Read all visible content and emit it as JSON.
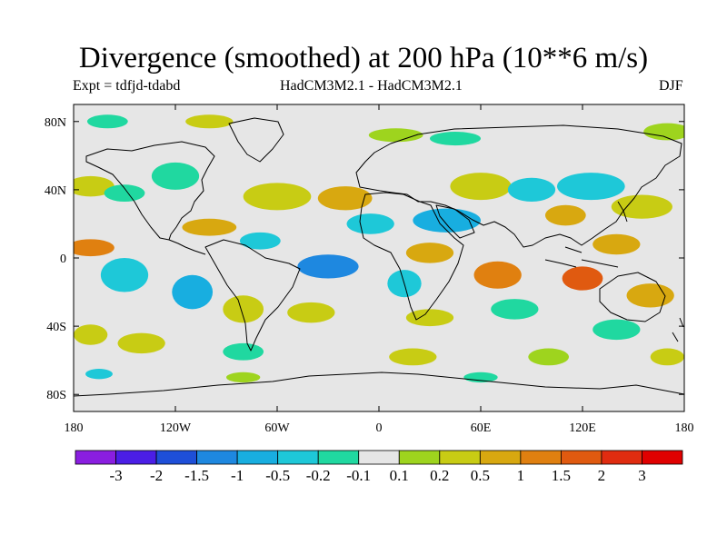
{
  "chart_data": {
    "type": "heatmap",
    "title": "Divergence (smoothed) at 200 hPa (10**6 m/s)",
    "subtitle_left": "Expt = tdfjd-tdabd",
    "subtitle_center": "HadCM3M2.1 - HadCM3M2.1",
    "subtitle_right": "DJF",
    "xlim": [
      -180,
      180
    ],
    "ylim": [
      -90,
      90
    ],
    "x_ticks": [
      {
        "value": -180,
        "label": "180"
      },
      {
        "value": -120,
        "label": "120W"
      },
      {
        "value": -60,
        "label": "60W"
      },
      {
        "value": 0,
        "label": "0"
      },
      {
        "value": 60,
        "label": "60E"
      },
      {
        "value": 120,
        "label": "120E"
      },
      {
        "value": 180,
        "label": "180"
      }
    ],
    "y_ticks": [
      {
        "value": 80,
        "label": "80N"
      },
      {
        "value": 40,
        "label": "40N"
      },
      {
        "value": 0,
        "label": "0"
      },
      {
        "value": -40,
        "label": "40S"
      },
      {
        "value": -80,
        "label": "80S"
      }
    ],
    "colorbar": {
      "levels": [
        "-3",
        "-2",
        "-1.5",
        "-1",
        "-0.5",
        "-0.2",
        "-0.1",
        "0.1",
        "0.2",
        "0.5",
        "1",
        "1.5",
        "2",
        "3"
      ],
      "colors": [
        "#8a1ee0",
        "#4b1ee6",
        "#1e4fd8",
        "#1e88e0",
        "#18aee0",
        "#1ec8d8",
        "#20d8a0",
        "#e6e6e6",
        "#9ed41e",
        "#c8cc14",
        "#d8a810",
        "#e08010",
        "#e05a10",
        "#e02c10",
        "#e00000"
      ]
    },
    "regions": [
      {
        "lon": -160,
        "lat": 80,
        "rx": 12,
        "ry": 4,
        "bin": 6
      },
      {
        "lon": -100,
        "lat": 80,
        "rx": 14,
        "ry": 4,
        "bin": 9
      },
      {
        "lon": 10,
        "lat": 72,
        "rx": 16,
        "ry": 4,
        "bin": 8
      },
      {
        "lon": 45,
        "lat": 70,
        "rx": 15,
        "ry": 4,
        "bin": 6
      },
      {
        "lon": 170,
        "lat": 74,
        "rx": 14,
        "ry": 5,
        "bin": 8
      },
      {
        "lon": -170,
        "lat": 42,
        "rx": 14,
        "ry": 6,
        "bin": 9
      },
      {
        "lon": -150,
        "lat": 38,
        "rx": 12,
        "ry": 5,
        "bin": 6
      },
      {
        "lon": -120,
        "lat": 48,
        "rx": 14,
        "ry": 8,
        "bin": 6
      },
      {
        "lon": -60,
        "lat": 36,
        "rx": 20,
        "ry": 8,
        "bin": 9
      },
      {
        "lon": -20,
        "lat": 35,
        "rx": 16,
        "ry": 7,
        "bin": 10
      },
      {
        "lon": 60,
        "lat": 42,
        "rx": 18,
        "ry": 8,
        "bin": 9
      },
      {
        "lon": 90,
        "lat": 40,
        "rx": 14,
        "ry": 7,
        "bin": 5
      },
      {
        "lon": 125,
        "lat": 42,
        "rx": 20,
        "ry": 8,
        "bin": 5
      },
      {
        "lon": 155,
        "lat": 30,
        "rx": 18,
        "ry": 7,
        "bin": 9
      },
      {
        "lon": 40,
        "lat": 22,
        "rx": 20,
        "ry": 7,
        "bin": 4
      },
      {
        "lon": -5,
        "lat": 20,
        "rx": 14,
        "ry": 6,
        "bin": 5
      },
      {
        "lon": 110,
        "lat": 25,
        "rx": 12,
        "ry": 6,
        "bin": 10
      },
      {
        "lon": -170,
        "lat": 6,
        "rx": 14,
        "ry": 5,
        "bin": 11
      },
      {
        "lon": -100,
        "lat": 18,
        "rx": 16,
        "ry": 5,
        "bin": 10
      },
      {
        "lon": -70,
        "lat": 10,
        "rx": 12,
        "ry": 5,
        "bin": 5
      },
      {
        "lon": 30,
        "lat": 3,
        "rx": 14,
        "ry": 6,
        "bin": 10
      },
      {
        "lon": 140,
        "lat": 8,
        "rx": 14,
        "ry": 6,
        "bin": 10
      },
      {
        "lon": -150,
        "lat": -10,
        "rx": 14,
        "ry": 10,
        "bin": 5
      },
      {
        "lon": -110,
        "lat": -20,
        "rx": 12,
        "ry": 10,
        "bin": 4
      },
      {
        "lon": -30,
        "lat": -5,
        "rx": 18,
        "ry": 7,
        "bin": 3
      },
      {
        "lon": 15,
        "lat": -15,
        "rx": 10,
        "ry": 8,
        "bin": 5
      },
      {
        "lon": 70,
        "lat": -10,
        "rx": 14,
        "ry": 8,
        "bin": 11
      },
      {
        "lon": 120,
        "lat": -12,
        "rx": 12,
        "ry": 7,
        "bin": 12
      },
      {
        "lon": 160,
        "lat": -22,
        "rx": 14,
        "ry": 7,
        "bin": 10
      },
      {
        "lon": -80,
        "lat": -30,
        "rx": 12,
        "ry": 8,
        "bin": 9
      },
      {
        "lon": -40,
        "lat": -32,
        "rx": 14,
        "ry": 6,
        "bin": 9
      },
      {
        "lon": 30,
        "lat": -35,
        "rx": 14,
        "ry": 5,
        "bin": 9
      },
      {
        "lon": 80,
        "lat": -30,
        "rx": 14,
        "ry": 6,
        "bin": 6
      },
      {
        "lon": 140,
        "lat": -42,
        "rx": 14,
        "ry": 6,
        "bin": 6
      },
      {
        "lon": -170,
        "lat": -45,
        "rx": 10,
        "ry": 6,
        "bin": 9
      },
      {
        "lon": -140,
        "lat": -50,
        "rx": 14,
        "ry": 6,
        "bin": 9
      },
      {
        "lon": -80,
        "lat": -55,
        "rx": 12,
        "ry": 5,
        "bin": 6
      },
      {
        "lon": 20,
        "lat": -58,
        "rx": 14,
        "ry": 5,
        "bin": 9
      },
      {
        "lon": 100,
        "lat": -58,
        "rx": 12,
        "ry": 5,
        "bin": 8
      },
      {
        "lon": 170,
        "lat": -58,
        "rx": 10,
        "ry": 5,
        "bin": 9
      },
      {
        "lon": -165,
        "lat": -68,
        "rx": 8,
        "ry": 3,
        "bin": 5
      },
      {
        "lon": -80,
        "lat": -70,
        "rx": 10,
        "ry": 3,
        "bin": 8
      },
      {
        "lon": 60,
        "lat": -70,
        "rx": 10,
        "ry": 3,
        "bin": 6
      }
    ]
  }
}
